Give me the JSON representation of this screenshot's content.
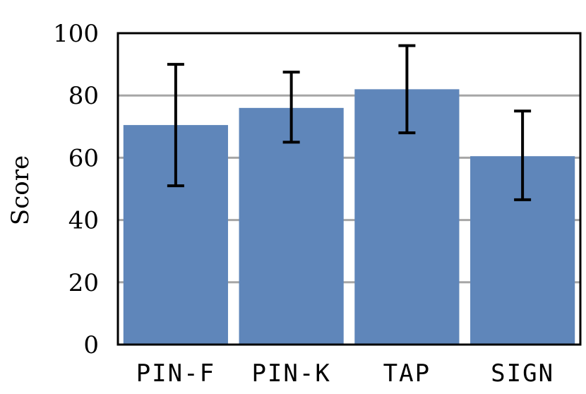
{
  "chart_data": {
    "type": "bar",
    "title": "",
    "xlabel": "",
    "ylabel": "Score",
    "ylim": [
      0,
      100
    ],
    "yticks": [
      0,
      20,
      40,
      60,
      80,
      100
    ],
    "grid": true,
    "legend": "none",
    "categories": [
      "PIN-F",
      "PIN-K",
      "TAP",
      "SIGN"
    ],
    "values": [
      70.5,
      76,
      82,
      60.5
    ],
    "error_low": [
      51,
      65,
      68,
      46.5
    ],
    "error_high": [
      90,
      87.5,
      96,
      75
    ],
    "bar_color": "#5f86ba",
    "grid_color": "#a6a6a6",
    "error_bar_color": "#000000"
  }
}
